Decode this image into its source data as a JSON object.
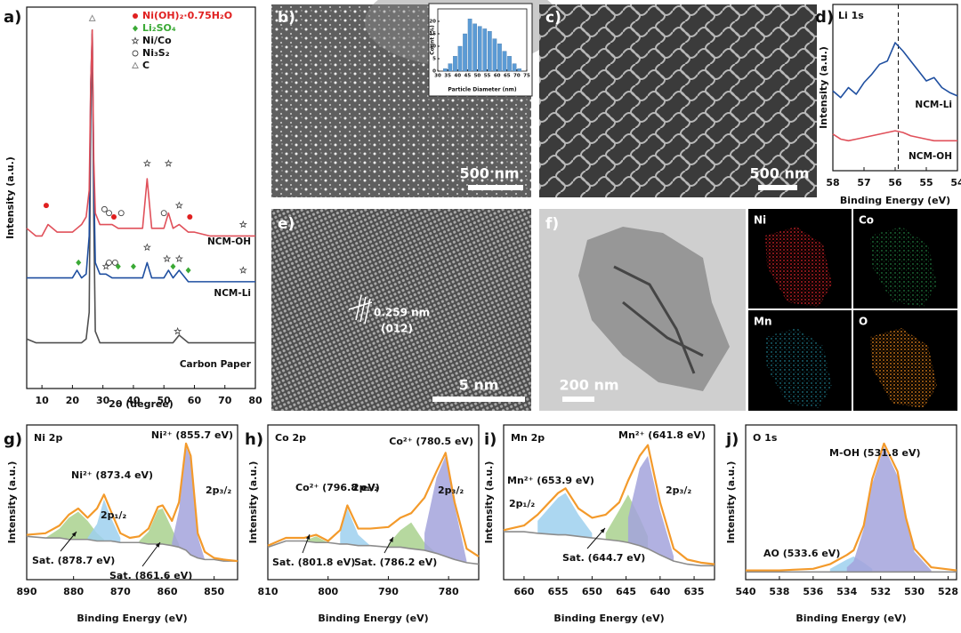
{
  "chart_data": [
    {
      "type": "line",
      "label": "a)",
      "xlabel": "2θ (degree)",
      "ylabel": "Intensity (a.u.)",
      "xlim": [
        5,
        80
      ],
      "xticks": [
        10,
        20,
        30,
        40,
        50,
        60,
        70,
        80
      ],
      "ylim": [
        0,
        100
      ],
      "x": [
        5,
        8,
        10,
        12,
        15,
        18,
        20,
        21.5,
        23,
        24.5,
        25.5,
        26,
        26.5,
        27,
        27.5,
        29,
        31,
        33,
        35,
        38,
        40,
        43,
        44.5,
        46,
        50,
        51.5,
        53,
        55,
        58,
        60,
        65,
        70,
        75,
        78,
        80
      ],
      "series": [
        {
          "name": "Carbon Paper",
          "color": "#505050",
          "style": "line",
          "values": [
            13,
            12,
            12,
            12,
            12,
            12,
            12,
            12,
            12,
            13,
            20,
            70,
            94,
            45,
            15,
            12,
            12,
            12,
            12,
            12,
            12,
            12,
            12,
            12,
            12,
            12,
            12,
            14,
            12,
            12,
            12,
            12,
            12,
            12,
            12
          ]
        },
        {
          "name": "NCM-Li",
          "color": "#1f4fa0",
          "style": "line",
          "values": [
            29,
            29,
            29,
            29,
            29,
            29,
            29,
            31,
            29,
            30,
            40,
            80,
            93,
            55,
            33,
            30,
            30,
            29,
            29,
            29,
            29,
            29,
            33,
            29,
            29,
            31,
            29,
            31,
            28,
            28,
            28,
            28,
            28,
            28,
            28
          ]
        },
        {
          "name": "NCM-OH",
          "color": "#e0505a",
          "style": "line",
          "values": [
            42,
            40,
            40,
            43,
            41,
            41,
            41,
            42,
            43,
            45,
            52,
            80,
            94,
            60,
            46,
            43,
            43,
            43,
            42,
            42,
            42,
            42,
            55,
            42,
            42,
            46,
            42,
            43,
            41,
            41,
            40,
            40,
            40,
            40,
            40
          ]
        }
      ],
      "phases": [
        {
          "name": "Ni(OH)₂·0.75H₂O",
          "symbol": "dot",
          "color": "#e02020",
          "x": [
            11.4,
            33.6,
            58.5
          ],
          "y": [
            48,
            45,
            45
          ]
        },
        {
          "name": "Li₂SO₄",
          "symbol": "diamond",
          "color": "#3aa935",
          "x": [
            22,
            35,
            40,
            53,
            58
          ],
          "y": [
            33,
            32,
            32,
            32,
            31
          ]
        },
        {
          "name": "Ni/Co",
          "symbol": "star",
          "color": "#444444",
          "x": [
            44.5,
            51.5,
            55,
            76,
            31,
            44.5,
            51,
            55,
            76,
            54.5
          ],
          "y": [
            59,
            59,
            48,
            43,
            32,
            37,
            34,
            34,
            31,
            15
          ]
        },
        {
          "name": "Ni₃S₂",
          "symbol": "circle",
          "color": "#444444",
          "x": [
            30.5,
            32,
            36,
            50,
            32,
            34
          ],
          "y": [
            47,
            46,
            46,
            46,
            33,
            33
          ]
        },
        {
          "name": "C",
          "symbol": "triangle",
          "color": "#888888",
          "x": [
            26.5
          ],
          "y": [
            97
          ]
        }
      ]
    },
    {
      "type": "line",
      "label": "d)",
      "title": "Li 1s",
      "xlabel": "Binding Energy (eV)",
      "ylabel": "Intensity (a.u.)",
      "xlim": [
        58,
        54
      ],
      "xticks": [
        58,
        57,
        56,
        55,
        54
      ],
      "ylim": [
        0,
        100
      ],
      "vline": 55.9,
      "x": [
        58,
        57.75,
        57.5,
        57.25,
        57,
        56.75,
        56.5,
        56.25,
        56,
        55.75,
        55.5,
        55.25,
        55,
        54.75,
        54.5,
        54.25,
        54
      ],
      "series": [
        {
          "name": "NCM-Li",
          "color": "#1f4fa0",
          "style": "line",
          "values": [
            48,
            44,
            50,
            46,
            53,
            58,
            64,
            66,
            77,
            72,
            66,
            60,
            54,
            56,
            50,
            47,
            45
          ]
        },
        {
          "name": "NCM-OH",
          "color": "#e0505a",
          "style": "line",
          "values": [
            22,
            19,
            18,
            19,
            20,
            21,
            22,
            23,
            24,
            23,
            21,
            20,
            19,
            18,
            18,
            18,
            18
          ]
        }
      ]
    },
    {
      "type": "histogram",
      "xlabel": "Particle Diameter (nm)",
      "ylabel": "Count (%)",
      "xlim": [
        30,
        75
      ],
      "xticks": [
        30,
        35,
        40,
        45,
        50,
        55,
        60,
        65,
        70,
        75
      ],
      "ylim": [
        0,
        25
      ],
      "yticks": [
        0,
        5,
        10,
        15,
        20
      ],
      "bins": [
        32.5,
        35,
        37.5,
        40,
        42.5,
        45,
        47.5,
        50,
        52.5,
        55,
        57.5,
        60,
        62.5,
        65,
        67.5,
        70,
        72.5
      ],
      "values": [
        1,
        3,
        6,
        10,
        15,
        21,
        19,
        18,
        17,
        16,
        13,
        11,
        8,
        6,
        3,
        1
      ],
      "color": "#5b9bd5"
    },
    {
      "type": "line",
      "label": "g)",
      "title": "Ni 2p",
      "xlabel": "Binding Energy (eV)",
      "ylabel": "Intensity (a.u.)",
      "xlim": [
        890,
        845
      ],
      "xticks": [
        890,
        880,
        870,
        860,
        850
      ],
      "ylim": [
        0,
        100
      ],
      "x": [
        890,
        886,
        883,
        881,
        879,
        877,
        875,
        873.5,
        872,
        870,
        868,
        866,
        864,
        862,
        861,
        859,
        857.5,
        856,
        855,
        853.5,
        852,
        850,
        848,
        845
      ],
      "series": [
        {
          "style": "area",
          "color": "#a9d18e",
          "values": [
            null,
            27,
            33,
            40,
            44,
            38,
            30,
            26,
            null,
            null,
            null,
            null,
            null,
            null,
            null,
            null,
            null,
            null,
            null,
            null,
            null,
            null,
            null,
            null
          ]
        },
        {
          "style": "area",
          "color": "#9dd0ee",
          "values": [
            null,
            null,
            null,
            null,
            null,
            27,
            36,
            52,
            40,
            27,
            null,
            null,
            null,
            null,
            null,
            null,
            null,
            null,
            null,
            null,
            null,
            null,
            null,
            null
          ]
        },
        {
          "style": "area",
          "color": "#a9d18e",
          "values": [
            null,
            null,
            null,
            null,
            null,
            null,
            null,
            null,
            null,
            null,
            null,
            25,
            31,
            45,
            46,
            33,
            23,
            null,
            null,
            null,
            null,
            null,
            null,
            null
          ]
        },
        {
          "style": "area",
          "color": "#a3a3dc",
          "values": [
            null,
            null,
            null,
            null,
            null,
            null,
            null,
            null,
            null,
            null,
            null,
            null,
            null,
            null,
            null,
            24,
            45,
            86,
            78,
            28,
            13,
            null,
            null,
            null
          ]
        },
        {
          "style": "baseline",
          "color": "#8c8c8c",
          "values": [
            28,
            27,
            27,
            26,
            26,
            26,
            25,
            25,
            25,
            24,
            24,
            24,
            23,
            23,
            23,
            22,
            21,
            19,
            16,
            14,
            13,
            13,
            12,
            12
          ]
        },
        {
          "style": "line",
          "color": "#f39a2b",
          "values": [
            29,
            30,
            35,
            42,
            46,
            40,
            46,
            55,
            44,
            30,
            27,
            28,
            33,
            47,
            48,
            38,
            50,
            88,
            80,
            30,
            18,
            14,
            13,
            12
          ]
        }
      ],
      "annotations": [
        "Ni²⁺ (855.7 eV)",
        "Ni²⁺ (873.4 eV)",
        "2p₁/₂",
        "2p₃/₂",
        "Sat. (878.7 eV)",
        "Sat. (861.6 eV)"
      ]
    },
    {
      "type": "line",
      "label": "h)",
      "title": "Co 2p",
      "xlabel": "Binding Energy (eV)",
      "ylabel": "Intensity (a.u.)",
      "xlim": [
        810,
        775
      ],
      "xticks": [
        810,
        800,
        790,
        780
      ],
      "ylim": [
        0,
        100
      ],
      "x": [
        810,
        807,
        804,
        802,
        800,
        798,
        796.8,
        795,
        793,
        790,
        788,
        786.2,
        784,
        782,
        780.5,
        779,
        777,
        775
      ],
      "series": [
        {
          "style": "area",
          "color": "#a9d18e",
          "values": [
            null,
            null,
            25,
            28,
            24,
            null,
            null,
            null,
            null,
            null,
            null,
            null,
            null,
            null,
            null,
            null,
            null,
            null
          ]
        },
        {
          "style": "area",
          "color": "#9dd0ee",
          "values": [
            null,
            null,
            null,
            null,
            null,
            30,
            46,
            29,
            22,
            null,
            null,
            null,
            null,
            null,
            null,
            null,
            null,
            null
          ]
        },
        {
          "style": "area",
          "color": "#a9d18e",
          "values": [
            null,
            null,
            null,
            null,
            null,
            null,
            null,
            null,
            null,
            23,
            32,
            37,
            24,
            17,
            null,
            null,
            null,
            null
          ]
        },
        {
          "style": "area",
          "color": "#a3a3dc",
          "values": [
            null,
            null,
            null,
            null,
            null,
            null,
            null,
            null,
            null,
            null,
            null,
            null,
            30,
            66,
            80,
            48,
            12,
            null
          ]
        },
        {
          "style": "baseline",
          "color": "#8c8c8c",
          "values": [
            21,
            25,
            25,
            24,
            24,
            23,
            23,
            22,
            22,
            21,
            21,
            20,
            19,
            17,
            15,
            13,
            11,
            10
          ]
        },
        {
          "style": "line",
          "color": "#f39a2b",
          "values": [
            22,
            27,
            27,
            29,
            25,
            32,
            48,
            33,
            33,
            34,
            40,
            43,
            53,
            70,
            82,
            50,
            20,
            15
          ]
        }
      ],
      "annotations": [
        "Co²⁺ (780.5 eV)",
        "Co²⁺ (796.8 eV)",
        "2p₁/₂",
        "2p₃/₂",
        "Sat. (801.8 eV)",
        "Sat. (786.2 eV)"
      ]
    },
    {
      "type": "line",
      "label": "i)",
      "title": "Mn 2p",
      "xlabel": "Binding Energy (eV)",
      "ylabel": "Intensity (a.u.)",
      "xlim": [
        663,
        632
      ],
      "xticks": [
        660,
        655,
        650,
        645,
        640,
        635
      ],
      "ylim": [
        0,
        100
      ],
      "x": [
        663,
        660,
        658,
        655,
        653.9,
        652,
        650,
        648,
        646,
        644.7,
        643,
        641.8,
        640,
        638,
        636,
        634,
        632
      ],
      "series": [
        {
          "style": "area",
          "color": "#9dd0ee",
          "values": [
            null,
            null,
            38,
            53,
            56,
            42,
            30,
            null,
            null,
            null,
            null,
            null,
            null,
            null,
            null,
            null,
            null
          ]
        },
        {
          "style": "area",
          "color": "#a9d18e",
          "values": [
            null,
            null,
            null,
            null,
            null,
            null,
            null,
            30,
            45,
            55,
            40,
            28,
            null,
            null,
            null,
            null,
            null
          ]
        },
        {
          "style": "area",
          "color": "#a3a3dc",
          "values": [
            null,
            null,
            null,
            null,
            null,
            null,
            null,
            null,
            null,
            40,
            72,
            80,
            45,
            15,
            null,
            null,
            null
          ]
        },
        {
          "style": "baseline",
          "color": "#8c8c8c",
          "values": [
            31,
            31,
            30,
            29,
            29,
            28,
            27,
            26,
            25,
            24,
            22,
            20,
            16,
            12,
            10,
            9,
            9
          ]
        },
        {
          "style": "line",
          "color": "#f39a2b",
          "values": [
            32,
            35,
            42,
            56,
            59,
            46,
            40,
            42,
            50,
            64,
            80,
            87,
            50,
            20,
            13,
            11,
            10
          ]
        }
      ],
      "annotations": [
        "Mn²⁺ (641.8 eV)",
        "Mn²⁺ (653.9 eV)",
        "2p₁/₂",
        "2p₃/₂",
        "Sat. (644.7 eV)"
      ]
    },
    {
      "type": "line",
      "label": "j)",
      "title": "O 1s",
      "xlabel": "Binding Energy (eV)",
      "ylabel": "Intensity (a.u.)",
      "xlim": [
        540,
        527.5
      ],
      "xticks": [
        540,
        538,
        536,
        534,
        532,
        530,
        528
      ],
      "ylim": [
        0,
        100
      ],
      "x": [
        540,
        538,
        536,
        535,
        534,
        533.6,
        533,
        532.5,
        531.8,
        531,
        530.5,
        530,
        529,
        527.5
      ],
      "series": [
        {
          "style": "area",
          "color": "#9dd0ee",
          "values": [
            null,
            null,
            null,
            7,
            13,
            15,
            11,
            7,
            null,
            null,
            null,
            null,
            null,
            null
          ]
        },
        {
          "style": "area",
          "color": "#a3a3dc",
          "values": [
            null,
            null,
            null,
            null,
            8,
            12,
            33,
            62,
            86,
            67,
            38,
            18,
            6,
            null
          ]
        },
        {
          "style": "baseline",
          "color": "#8c8c8c",
          "values": [
            5,
            5,
            5,
            5,
            5,
            5,
            5,
            5,
            5,
            5,
            5,
            5,
            5,
            5
          ]
        },
        {
          "style": "line",
          "color": "#f39a2b",
          "values": [
            6,
            6,
            7,
            10,
            16,
            19,
            35,
            65,
            88,
            70,
            40,
            20,
            8,
            6
          ]
        }
      ],
      "annotations": [
        "M-OH (531.8 eV)",
        "AO (533.6 eV)"
      ]
    }
  ],
  "images": [
    {
      "label": "b)",
      "scale_bar": "500 nm"
    },
    {
      "label": "c)",
      "scale_bar": "500 nm"
    },
    {
      "label": "e)",
      "scale_bar": "5 nm",
      "annotations": [
        "0.259 nm",
        "(012)"
      ]
    },
    {
      "label": "f)",
      "scale_bar": "200 nm",
      "maps": [
        "Ni",
        "Co",
        "Mn",
        "O"
      ]
    }
  ]
}
